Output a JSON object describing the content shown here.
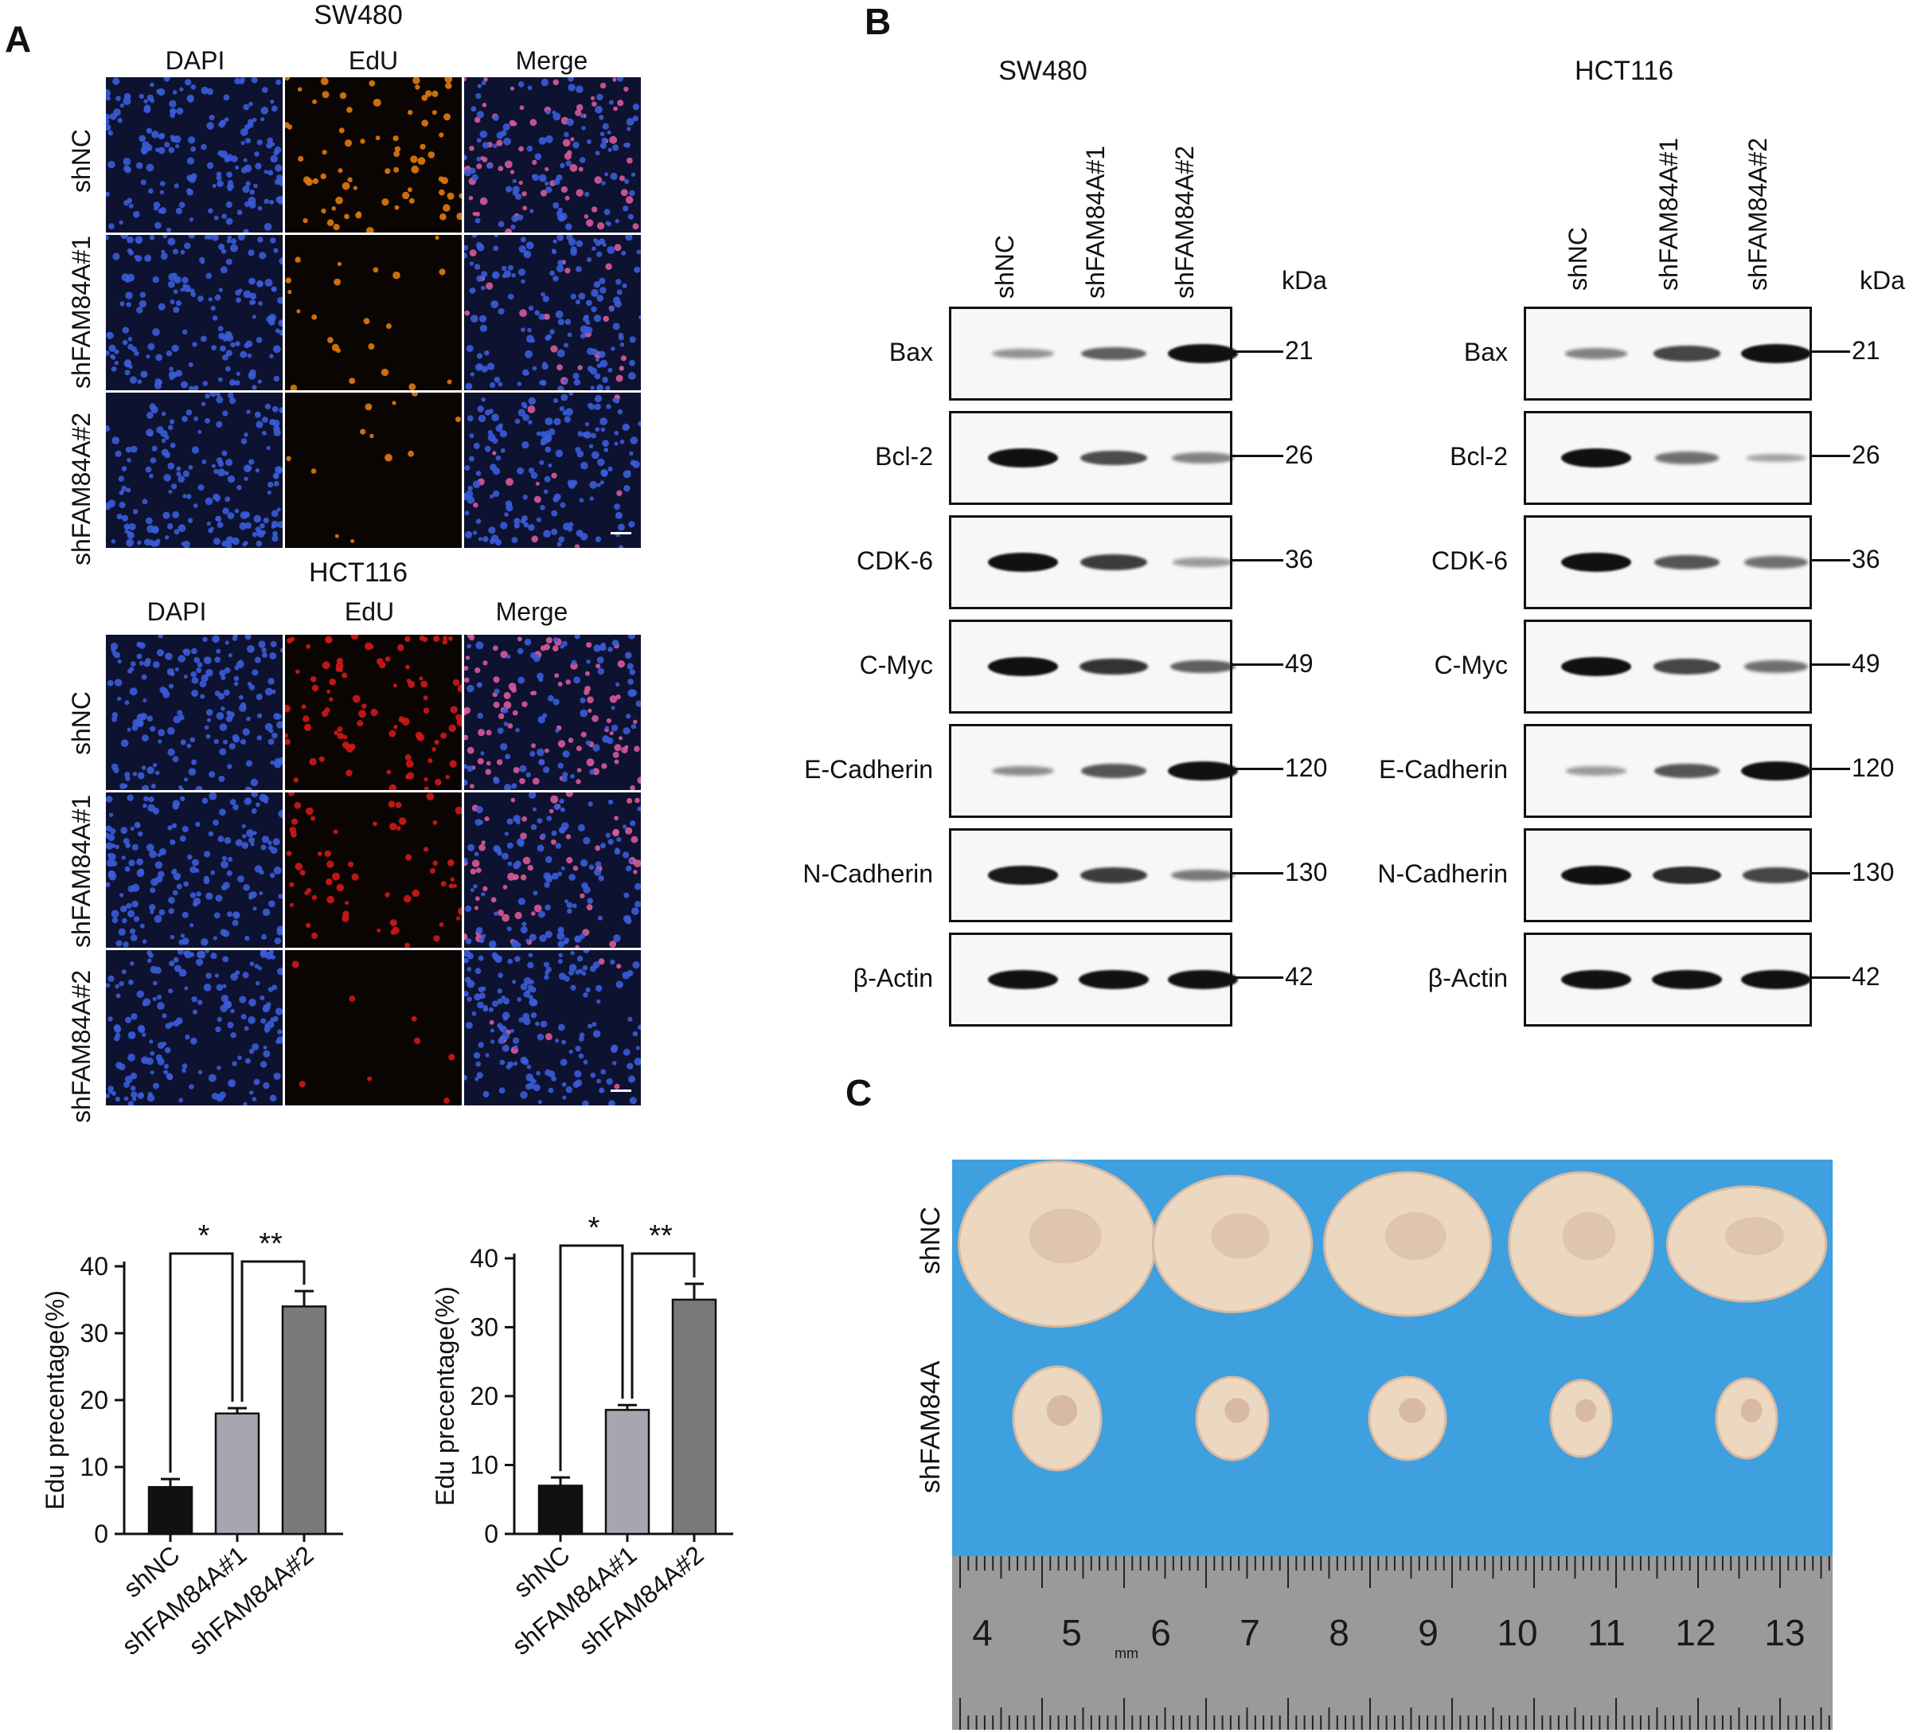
{
  "panel_a": {
    "letter": "A",
    "sw480": {
      "title": "SW480",
      "columns": [
        "DAPI",
        "EdU",
        "Merge"
      ],
      "rows": [
        "shNC",
        "shFAM84A#1",
        "shFAM84A#2"
      ]
    },
    "hct116": {
      "title": "HCT116",
      "columns": [
        "DAPI",
        "EdU",
        "Merge"
      ],
      "rows": [
        "shNC",
        "shFAM84A#1",
        "shFAM84A#2"
      ]
    },
    "colors": {
      "dapi": "#1a2a6e",
      "edu_sw480": "#e07a10",
      "edu_hct116": "#d01818",
      "nucleus": "#3a5cd8"
    }
  },
  "panel_b": {
    "letter": "B",
    "kda_label": "kDa",
    "lanes": [
      "shNC",
      "shFAM84A#1",
      "shFAM84A#2"
    ],
    "blots": [
      {
        "title": "SW480",
        "proteins": [
          {
            "name": "Bax",
            "mw": "21",
            "intensity": [
              0.25,
              0.55,
              1.0
            ]
          },
          {
            "name": "Bcl-2",
            "mw": "26",
            "intensity": [
              1.0,
              0.65,
              0.35
            ]
          },
          {
            "name": "CDK-6",
            "mw": "36",
            "intensity": [
              1.0,
              0.75,
              0.2
            ]
          },
          {
            "name": "C-Myc",
            "mw": "49",
            "intensity": [
              1.0,
              0.8,
              0.55
            ]
          },
          {
            "name": "E-Cadherin",
            "mw": "120",
            "intensity": [
              0.3,
              0.6,
              1.0
            ]
          },
          {
            "name": "N-Cadherin",
            "mw": "130",
            "intensity": [
              0.95,
              0.75,
              0.4
            ]
          },
          {
            "name": "β-Actin",
            "mw": "42",
            "intensity": [
              1.0,
              1.0,
              1.0
            ]
          }
        ]
      },
      {
        "title": "HCT116",
        "proteins": [
          {
            "name": "Bax",
            "mw": "21",
            "intensity": [
              0.35,
              0.7,
              1.0
            ]
          },
          {
            "name": "Bcl-2",
            "mw": "26",
            "intensity": [
              1.0,
              0.45,
              0.15
            ]
          },
          {
            "name": "CDK-6",
            "mw": "36",
            "intensity": [
              1.0,
              0.6,
              0.45
            ]
          },
          {
            "name": "C-Myc",
            "mw": "49",
            "intensity": [
              1.0,
              0.7,
              0.45
            ]
          },
          {
            "name": "E-Cadherin",
            "mw": "120",
            "intensity": [
              0.2,
              0.6,
              1.0
            ]
          },
          {
            "name": "N-Cadherin",
            "mw": "130",
            "intensity": [
              1.0,
              0.85,
              0.7
            ]
          },
          {
            "name": "β-Actin",
            "mw": "42",
            "intensity": [
              1.0,
              1.0,
              1.0
            ]
          }
        ]
      }
    ]
  },
  "panel_c": {
    "letter": "C",
    "rows": [
      "shNC",
      "shFAM84A"
    ],
    "ruler_numbers": [
      "4",
      "5",
      "6",
      "7",
      "8",
      "9",
      "10",
      "11",
      "12",
      "13"
    ],
    "ruler_unit": "mm",
    "colors": {
      "background": "#3fa0e0",
      "tumor": "#ecd8c0",
      "ruler": "#9a9a9a"
    }
  },
  "chart_data": [
    {
      "type": "bar",
      "categories": [
        "shNC",
        "shFAM84A#1",
        "shFAM84A#2"
      ],
      "values": [
        7,
        18,
        34
      ],
      "errors": [
        1.2,
        0.8,
        2.3
      ],
      "ylabel": "Edu precentage(%)",
      "xlabel": "",
      "ylim": [
        0,
        40
      ],
      "yticks": [
        "0",
        "10",
        "20",
        "30",
        "40"
      ],
      "bar_colors": [
        "#111111",
        "#a6a6b0",
        "#7a7a7a"
      ],
      "significance": [
        {
          "label": "*",
          "from": 0,
          "to": 1
        },
        {
          "label": "**",
          "from": 1,
          "to": 2
        }
      ]
    },
    {
      "type": "bar",
      "categories": [
        "shNC",
        "shFAM84A#1",
        "shFAM84A#2"
      ],
      "values": [
        7,
        18,
        34
      ],
      "errors": [
        1.2,
        0.7,
        2.3
      ],
      "ylabel": "Edu precentage(%)",
      "xlabel": "",
      "ylim": [
        0,
        40
      ],
      "yticks": [
        "0",
        "10",
        "20",
        "30",
        "40"
      ],
      "bar_colors": [
        "#111111",
        "#a6a6b0",
        "#7a7a7a"
      ],
      "significance": [
        {
          "label": "*",
          "from": 0,
          "to": 1
        },
        {
          "label": "**",
          "from": 1,
          "to": 2
        }
      ]
    }
  ]
}
